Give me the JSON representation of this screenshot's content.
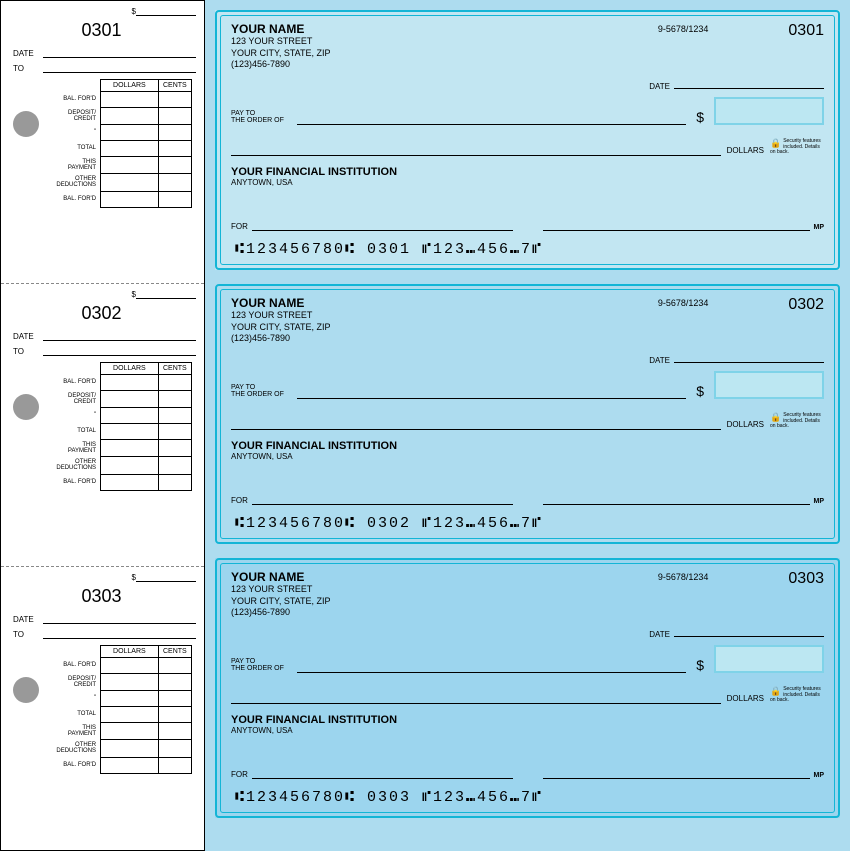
{
  "colors": {
    "check_border": "#13b5d6",
    "amount_box_border": "#7fd3e8",
    "amount_box_fill": "#bce7f2",
    "hole": "#999999",
    "check_backgrounds": [
      "#c2e6f2",
      "#addcef",
      "#9cd5ee"
    ]
  },
  "stub": {
    "date_label": "DATE",
    "to_label": "TO",
    "dollar_sign": "$",
    "ledger_headers": {
      "dollars": "DOLLARS",
      "cents": "CENTS"
    },
    "ledger_rows": [
      "BAL. FOR'D",
      "DEPOSIT/\nCREDIT",
      "\"",
      "TOTAL",
      "THIS\nPAYMENT",
      "OTHER\nDEDUCTIONS",
      "BAL. FOR'D"
    ]
  },
  "check_template": {
    "name": "YOUR NAME",
    "addr1": "123 YOUR STREET",
    "addr2": "YOUR CITY, STATE, ZIP",
    "phone": "(123)456-7890",
    "routing_frac": "9-5678/1234",
    "date_label": "DATE",
    "payto_label": "PAY TO\nTHE ORDER OF",
    "dollar_sign": "$",
    "dollars_label": "DOLLARS",
    "security_text": "Security features included. Details on back.",
    "bank_name": "YOUR FINANCIAL INSTITUTION",
    "bank_city": "ANYTOWN, USA",
    "for_label": "FOR",
    "mp": "MP"
  },
  "checks": [
    {
      "number": "0301",
      "micr": "⑆123456780⑆  0301   ⑈123⑉456⑉7⑈"
    },
    {
      "number": "0302",
      "micr": "⑆123456780⑆  0302   ⑈123⑉456⑉7⑈"
    },
    {
      "number": "0303",
      "micr": "⑆123456780⑆  0303   ⑈123⑉456⑉7⑈"
    }
  ]
}
